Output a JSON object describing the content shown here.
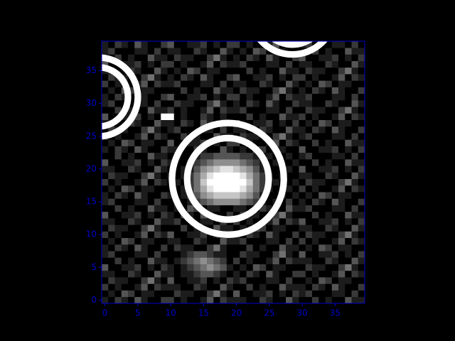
{
  "chart_data": {
    "type": "image",
    "colormap": "gray",
    "vlim": [
      0,
      9
    ],
    "axis_color": "#0000cc",
    "background": "#000000",
    "xlim": [
      -0.5,
      39.5
    ],
    "ylim": [
      -0.5,
      39.5
    ],
    "xticks": [
      0,
      5,
      10,
      15,
      20,
      25,
      30,
      35
    ],
    "yticks": [
      0,
      5,
      10,
      15,
      20,
      25,
      30,
      35
    ],
    "circles": [
      {
        "x": 18.7,
        "y": 18.5,
        "r": 8.5
      },
      {
        "x": 18.7,
        "y": 18.5,
        "r": 6.2
      },
      {
        "x": -1,
        "y": 31,
        "r": 6
      },
      {
        "x": -1,
        "y": 31,
        "r": 4.5
      },
      {
        "x": 28.5,
        "y": 44,
        "r": 6.5
      },
      {
        "x": 28.5,
        "y": 44,
        "r": 5
      }
    ],
    "values": [
      [
        1,
        0,
        2,
        1,
        0,
        3,
        1,
        0,
        0,
        2,
        2,
        0,
        1,
        0,
        0,
        1,
        3,
        0,
        2,
        1,
        1,
        1,
        0,
        0,
        2,
        1,
        0,
        0,
        3,
        1,
        0,
        0,
        2,
        0,
        1,
        0,
        0,
        3,
        1,
        1
      ],
      [
        0,
        1,
        0,
        3,
        2,
        0,
        1,
        1,
        0,
        0,
        0,
        2,
        1,
        1,
        0,
        0,
        2,
        4,
        1,
        0,
        3,
        0,
        0,
        1,
        1,
        2,
        0,
        1,
        0,
        2,
        1,
        2,
        0,
        0,
        0,
        1,
        1,
        0,
        2,
        0
      ],
      [
        2,
        0,
        1,
        0,
        0,
        1,
        3,
        0,
        2,
        1,
        1,
        1,
        0,
        0,
        2,
        1,
        0,
        0,
        3,
        1,
        0,
        0,
        2,
        0,
        1,
        0,
        0,
        3,
        1,
        1,
        1,
        0,
        2,
        1,
        0,
        3,
        1,
        0,
        0,
        2
      ],
      [
        0,
        2,
        1,
        1,
        0,
        0,
        2,
        4,
        1,
        0,
        3,
        0,
        0,
        1,
        1,
        2,
        0,
        1,
        0,
        2,
        1,
        2,
        0,
        0,
        0,
        1,
        1,
        0,
        2,
        0,
        0,
        1,
        0,
        3,
        2,
        0,
        1,
        1,
        0,
        0
      ],
      [
        1,
        1,
        0,
        0,
        2,
        1,
        0,
        0,
        3,
        1,
        1,
        0,
        1,
        1,
        2,
        3,
        3,
        2,
        1,
        0,
        1,
        0,
        2,
        1,
        0,
        3,
        1,
        0,
        0,
        2,
        2,
        0,
        1,
        0,
        0,
        1,
        3,
        0,
        2,
        1
      ],
      [
        3,
        0,
        0,
        1,
        1,
        2,
        0,
        1,
        0,
        2,
        1,
        0,
        1,
        2,
        3,
        4,
        5,
        4,
        3,
        1,
        0,
        1,
        0,
        3,
        2,
        0,
        1,
        1,
        0,
        0,
        0,
        2,
        1,
        1,
        0,
        0,
        2,
        4,
        1,
        0
      ],
      [
        0,
        0,
        2,
        0,
        1,
        0,
        0,
        3,
        1,
        1,
        0,
        1,
        2,
        3,
        4,
        5,
        4,
        3,
        2,
        0,
        2,
        0,
        1,
        0,
        0,
        1,
        3,
        0,
        2,
        1,
        1,
        1,
        0,
        0,
        2,
        1,
        0,
        0,
        3,
        1
      ],
      [
        1,
        2,
        0,
        0,
        0,
        1,
        1,
        0,
        2,
        0,
        0,
        0,
        1,
        2,
        3,
        3,
        2,
        1,
        1,
        0,
        0,
        2,
        1,
        1,
        0,
        0,
        2,
        4,
        1,
        0,
        3,
        0,
        0,
        1,
        1,
        2,
        0,
        1,
        0,
        2
      ],
      [
        1,
        0,
        2,
        1,
        0,
        3,
        1,
        0,
        0,
        2,
        0,
        2,
        1,
        1,
        0,
        0,
        2,
        4,
        1,
        0,
        0,
        0,
        2,
        0,
        1,
        0,
        0,
        3,
        1,
        1,
        0,
        1,
        0,
        3,
        2,
        0,
        1,
        1,
        0,
        0
      ],
      [
        0,
        1,
        0,
        3,
        2,
        0,
        1,
        1,
        0,
        0,
        1,
        1,
        0,
        0,
        2,
        1,
        0,
        0,
        3,
        1,
        1,
        2,
        0,
        0,
        0,
        1,
        1,
        0,
        2,
        0,
        2,
        0,
        1,
        0,
        0,
        1,
        3,
        0,
        2,
        1
      ],
      [
        2,
        0,
        1,
        0,
        0,
        1,
        3,
        0,
        2,
        1,
        3,
        0,
        0,
        1,
        1,
        2,
        0,
        1,
        0,
        2,
        1,
        0,
        2,
        1,
        0,
        3,
        1,
        0,
        0,
        2,
        0,
        2,
        1,
        1,
        0,
        0,
        2,
        4,
        1,
        0
      ],
      [
        0,
        2,
        1,
        1,
        0,
        0,
        2,
        4,
        1,
        0,
        0,
        0,
        2,
        0,
        1,
        0,
        0,
        3,
        1,
        1,
        0,
        1,
        0,
        3,
        2,
        0,
        1,
        1,
        0,
        0,
        1,
        1,
        0,
        0,
        2,
        1,
        0,
        0,
        3,
        1
      ],
      [
        1,
        1,
        0,
        0,
        2,
        1,
        0,
        0,
        3,
        1,
        1,
        2,
        0,
        0,
        0,
        1,
        1,
        0,
        2,
        0,
        2,
        0,
        1,
        0,
        0,
        1,
        3,
        0,
        2,
        1,
        3,
        0,
        0,
        1,
        1,
        2,
        0,
        1,
        0,
        2
      ],
      [
        3,
        0,
        0,
        1,
        1,
        2,
        0,
        1,
        0,
        2,
        1,
        0,
        2,
        1,
        0,
        3,
        1,
        0,
        0,
        2,
        0,
        2,
        1,
        1,
        0,
        0,
        2,
        4,
        1,
        0,
        0,
        0,
        2,
        0,
        1,
        0,
        0,
        3,
        1,
        1
      ],
      [
        0,
        0,
        2,
        0,
        1,
        0,
        0,
        3,
        1,
        1,
        0,
        1,
        0,
        3,
        2,
        0,
        1,
        1,
        0,
        0,
        1,
        1,
        0,
        0,
        2,
        1,
        0,
        0,
        3,
        1,
        1,
        2,
        0,
        0,
        0,
        1,
        1,
        0,
        2,
        0
      ],
      [
        1,
        2,
        0,
        0,
        0,
        1,
        1,
        0,
        2,
        0,
        0,
        1,
        0,
        1,
        2,
        3,
        4,
        5,
        5,
        5,
        5,
        4,
        3,
        2,
        1,
        0,
        1,
        0,
        2,
        0,
        1,
        0,
        2,
        1,
        0,
        3,
        1,
        0,
        0,
        2
      ],
      [
        1,
        0,
        2,
        1,
        0,
        3,
        1,
        0,
        0,
        2,
        1,
        0,
        1,
        2,
        3,
        5,
        6,
        7,
        7,
        7,
        7,
        6,
        5,
        3,
        1,
        0,
        0,
        1,
        0,
        1,
        0,
        1,
        0,
        3,
        2,
        0,
        1,
        1,
        0,
        0
      ],
      [
        0,
        1,
        0,
        3,
        2,
        0,
        1,
        1,
        0,
        0,
        0,
        0,
        1,
        2,
        4,
        6,
        8,
        9,
        9,
        9,
        9,
        8,
        6,
        4,
        2,
        1,
        0,
        0,
        1,
        0,
        2,
        0,
        1,
        0,
        0,
        1,
        3,
        0,
        2,
        1
      ],
      [
        2,
        0,
        1,
        0,
        0,
        1,
        3,
        0,
        2,
        1,
        0,
        1,
        0,
        2,
        4,
        7,
        9,
        9,
        9,
        9,
        9,
        9,
        7,
        4,
        2,
        0,
        1,
        0,
        0,
        1,
        0,
        2,
        1,
        1,
        0,
        0,
        2,
        4,
        1,
        0
      ],
      [
        0,
        2,
        1,
        1,
        0,
        0,
        2,
        4,
        1,
        0,
        1,
        0,
        1,
        2,
        4,
        6,
        8,
        9,
        9,
        9,
        9,
        8,
        6,
        4,
        2,
        1,
        0,
        1,
        0,
        0,
        1,
        1,
        0,
        0,
        2,
        1,
        0,
        0,
        3,
        1
      ],
      [
        1,
        1,
        0,
        0,
        2,
        1,
        0,
        0,
        3,
        1,
        0,
        0,
        1,
        1,
        3,
        5,
        6,
        7,
        8,
        8,
        7,
        6,
        5,
        3,
        1,
        0,
        0,
        0,
        1,
        0,
        3,
        0,
        0,
        1,
        1,
        2,
        0,
        1,
        0,
        2
      ],
      [
        3,
        0,
        0,
        1,
        1,
        2,
        0,
        1,
        0,
        2,
        1,
        0,
        0,
        1,
        2,
        3,
        4,
        5,
        5,
        5,
        5,
        4,
        3,
        2,
        1,
        0,
        1,
        0,
        0,
        1,
        0,
        0,
        2,
        0,
        1,
        0,
        0,
        3,
        1,
        1
      ],
      [
        0,
        0,
        2,
        0,
        1,
        0,
        0,
        3,
        1,
        1,
        0,
        1,
        0,
        0,
        1,
        2,
        2,
        3,
        3,
        3,
        3,
        2,
        2,
        1,
        0,
        1,
        0,
        0,
        1,
        0,
        1,
        2,
        0,
        0,
        0,
        1,
        1,
        0,
        2,
        0
      ],
      [
        1,
        0,
        2,
        1,
        0,
        3,
        1,
        0,
        0,
        2,
        1,
        1,
        0,
        0,
        2,
        1,
        0,
        0,
        3,
        1,
        0,
        1,
        0,
        3,
        2,
        0,
        1,
        1,
        0,
        0,
        3,
        0,
        0,
        1,
        1,
        2,
        0,
        1,
        0,
        2
      ],
      [
        0,
        1,
        0,
        3,
        2,
        0,
        1,
        1,
        0,
        0,
        3,
        0,
        0,
        1,
        1,
        2,
        0,
        1,
        0,
        2,
        2,
        0,
        1,
        0,
        0,
        1,
        3,
        0,
        2,
        1,
        0,
        0,
        2,
        0,
        1,
        0,
        0,
        3,
        1,
        1
      ],
      [
        2,
        0,
        1,
        0,
        0,
        1,
        3,
        0,
        2,
        1,
        0,
        0,
        2,
        0,
        1,
        0,
        0,
        3,
        1,
        1,
        0,
        2,
        1,
        1,
        0,
        0,
        2,
        4,
        1,
        0,
        1,
        2,
        0,
        0,
        0,
        1,
        1,
        0,
        2,
        0
      ],
      [
        0,
        2,
        1,
        1,
        0,
        0,
        2,
        4,
        1,
        0,
        1,
        2,
        0,
        0,
        0,
        1,
        1,
        0,
        2,
        0,
        1,
        1,
        0,
        0,
        2,
        1,
        0,
        0,
        3,
        1,
        1,
        0,
        2,
        1,
        0,
        3,
        1,
        0,
        0,
        2
      ],
      [
        1,
        1,
        0,
        0,
        2,
        1,
        0,
        0,
        3,
        1,
        1,
        0,
        2,
        1,
        0,
        3,
        1,
        0,
        0,
        2,
        3,
        0,
        0,
        1,
        1,
        2,
        0,
        1,
        0,
        2,
        0,
        1,
        0,
        3,
        2,
        0,
        1,
        1,
        0,
        0
      ],
      [
        3,
        0,
        0,
        1,
        1,
        2,
        0,
        1,
        0,
        9,
        9,
        0,
        1,
        0,
        0,
        2,
        1,
        0,
        1,
        0,
        0,
        0,
        2,
        0,
        1,
        0,
        0,
        3,
        1,
        1,
        2,
        0,
        1,
        0,
        0,
        1,
        3,
        0,
        2,
        1
      ],
      [
        0,
        0,
        2,
        0,
        1,
        0,
        0,
        3,
        1,
        1,
        2,
        0,
        1,
        0,
        0,
        1,
        3,
        0,
        2,
        1,
        1,
        2,
        0,
        0,
        0,
        1,
        1,
        0,
        2,
        0,
        0,
        2,
        1,
        1,
        0,
        0,
        2,
        4,
        1,
        0
      ],
      [
        1,
        2,
        0,
        0,
        0,
        1,
        1,
        0,
        2,
        0,
        0,
        2,
        1,
        1,
        0,
        0,
        2,
        4,
        1,
        0,
        1,
        0,
        2,
        1,
        0,
        3,
        1,
        0,
        0,
        2,
        1,
        1,
        0,
        0,
        2,
        1,
        0,
        0,
        3,
        1
      ],
      [
        1,
        0,
        2,
        1,
        0,
        3,
        1,
        0,
        0,
        2,
        3,
        0,
        0,
        1,
        1,
        2,
        0,
        1,
        0,
        2,
        2,
        0,
        1,
        0,
        0,
        1,
        3,
        0,
        2,
        1,
        1,
        2,
        0,
        0,
        0,
        1,
        1,
        0,
        2,
        0
      ],
      [
        0,
        1,
        0,
        3,
        2,
        0,
        1,
        1,
        0,
        0,
        0,
        0,
        2,
        0,
        1,
        0,
        0,
        3,
        1,
        1,
        0,
        2,
        1,
        1,
        0,
        0,
        2,
        4,
        1,
        0,
        1,
        0,
        2,
        1,
        0,
        3,
        1,
        0,
        0,
        2
      ],
      [
        2,
        0,
        1,
        0,
        0,
        1,
        3,
        0,
        2,
        1,
        1,
        2,
        0,
        0,
        0,
        1,
        1,
        0,
        2,
        0,
        1,
        1,
        0,
        0,
        2,
        1,
        0,
        0,
        3,
        1,
        0,
        1,
        0,
        3,
        2,
        0,
        1,
        1,
        0,
        0
      ],
      [
        0,
        2,
        1,
        1,
        0,
        0,
        2,
        4,
        1,
        0,
        1,
        0,
        2,
        1,
        0,
        3,
        1,
        0,
        0,
        2,
        3,
        0,
        0,
        1,
        1,
        2,
        0,
        1,
        0,
        2,
        2,
        0,
        1,
        0,
        0,
        1,
        3,
        0,
        2,
        1
      ],
      [
        1,
        1,
        0,
        0,
        2,
        1,
        0,
        0,
        3,
        1,
        0,
        1,
        0,
        3,
        2,
        0,
        1,
        1,
        0,
        0,
        0,
        0,
        2,
        0,
        1,
        0,
        0,
        3,
        1,
        1,
        0,
        2,
        1,
        1,
        0,
        0,
        2,
        4,
        1,
        0
      ],
      [
        3,
        0,
        0,
        1,
        1,
        2,
        0,
        1,
        0,
        2,
        2,
        0,
        1,
        0,
        0,
        1,
        3,
        0,
        2,
        1,
        1,
        2,
        0,
        0,
        0,
        1,
        1,
        0,
        2,
        0,
        1,
        1,
        0,
        0,
        2,
        1,
        0,
        0,
        3,
        1
      ],
      [
        0,
        0,
        2,
        0,
        1,
        0,
        0,
        3,
        1,
        1,
        0,
        2,
        1,
        1,
        0,
        0,
        2,
        4,
        1,
        0,
        1,
        0,
        2,
        1,
        0,
        3,
        1,
        0,
        0,
        2,
        3,
        0,
        0,
        1,
        1,
        2,
        0,
        1,
        0,
        2
      ],
      [
        1,
        2,
        0,
        0,
        0,
        1,
        1,
        0,
        2,
        0,
        1,
        1,
        0,
        0,
        2,
        1,
        0,
        0,
        3,
        1,
        0,
        1,
        0,
        3,
        2,
        0,
        1,
        1,
        0,
        0,
        0,
        0,
        2,
        0,
        1,
        0,
        0,
        3,
        1,
        1
      ],
      [
        1,
        0,
        2,
        1,
        0,
        3,
        1,
        0,
        0,
        2,
        3,
        0,
        0,
        1,
        1,
        2,
        0,
        1,
        0,
        2,
        2,
        0,
        1,
        0,
        0,
        1,
        3,
        0,
        2,
        1,
        1,
        2,
        0,
        0,
        0,
        1,
        1,
        0,
        2,
        0
      ]
    ]
  }
}
